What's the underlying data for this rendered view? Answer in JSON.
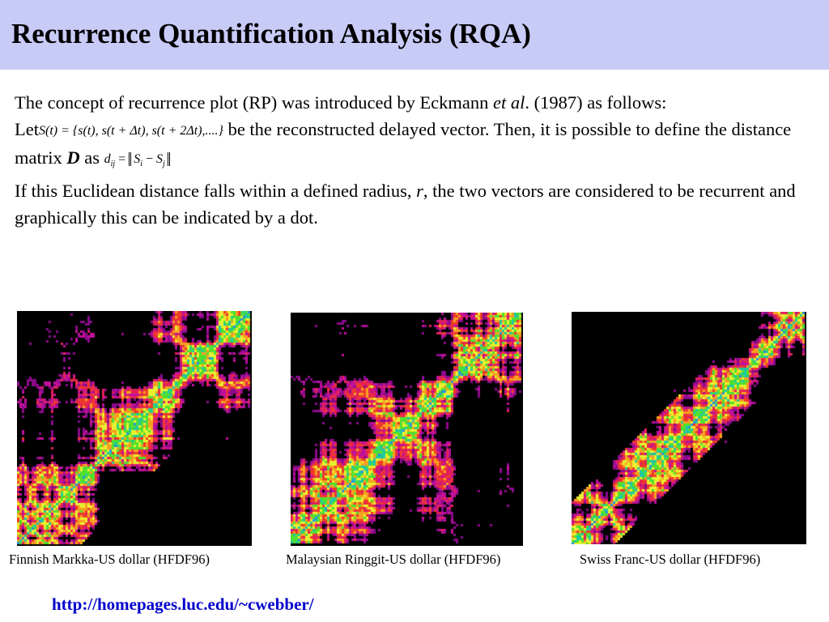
{
  "slide": {
    "title": "Recurrence Quantification Analysis (RQA)",
    "text": {
      "p1_a": "The concept of recurrence plot (RP) was introduced by Eckmann ",
      "p1_etal": "et al",
      "p1_b": ". (1987) as follows:",
      "p2_let": "Let",
      "eq1": "S(t) = {s(t), s(t + Δt), s(t + 2Δt),....}",
      "p2_a": " be the reconstructed delayed vector. Then, it is possible to define the distance matrix ",
      "p2_D": "D",
      "p2_as": " as ",
      "eq2_d": "d",
      "eq2_ij": "ij",
      "eq2_eq": " = ",
      "eq2_S1": "S",
      "eq2_i": "i",
      "eq2_minus": " − ",
      "eq2_S2": "S",
      "eq2_j": "j",
      "p3_a": "If this Euclidean distance falls within a defined radius, ",
      "p3_r": "r",
      "p3_b": ", the two vectors are considered to be recurrent and graphically this can be indicated by a dot."
    },
    "plots": [
      {
        "caption": "Finnish Markka-US dollar (HFDF96)",
        "pattern": "lower-black"
      },
      {
        "caption": "Malaysian Ringgit-US dollar (HFDF96)",
        "pattern": "dense"
      },
      {
        "caption": "Swiss Franc-US dollar (HFDF96)",
        "pattern": "sparse"
      }
    ],
    "link": "http://homepages.luc.edu/~cwebber/"
  },
  "colors": {
    "title_bar": "#c9cbf7",
    "link": "#0000cc",
    "rp_palette": [
      "#000000",
      "#8a0a8a",
      "#c0109a",
      "#e0205a",
      "#f03a2a",
      "#f8a020",
      "#e8f030",
      "#50e030",
      "#20c8a0",
      "#2890e0"
    ]
  }
}
